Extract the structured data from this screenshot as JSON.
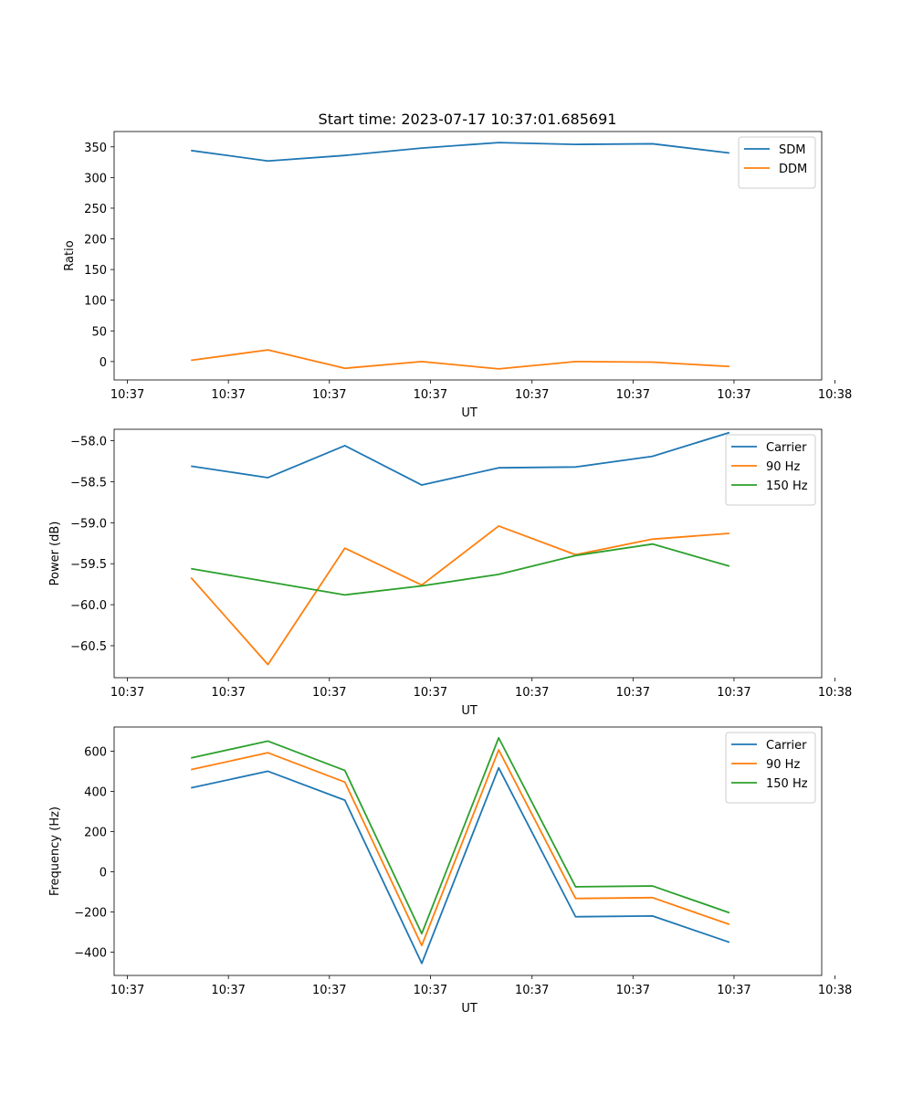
{
  "title": "Start time: 2023-07-17 10:37:01.685691",
  "colors": {
    "blue": "#1f77b4",
    "orange": "#ff7f0e",
    "green": "#2ca02c"
  },
  "chart_data": [
    {
      "type": "line",
      "xlabel": "UT",
      "ylabel": "Ratio",
      "x_tick_labels": [
        "10:37",
        "10:37",
        "10:37",
        "10:37",
        "10:37",
        "10:37",
        "10:37",
        "10:38"
      ],
      "x": [
        1,
        2,
        3,
        4,
        5,
        6,
        7,
        8
      ],
      "xlim": [
        0,
        9.2
      ],
      "ylim": [
        -30,
        375
      ],
      "y_ticks": [
        0,
        50,
        100,
        150,
        200,
        250,
        300,
        350
      ],
      "legend": "top-right",
      "series": [
        {
          "name": "SDM",
          "color": "#1f77b4",
          "values": [
            344,
            327,
            336,
            348,
            357,
            354,
            355,
            340
          ]
        },
        {
          "name": "DDM",
          "color": "#ff7f0e",
          "values": [
            2,
            19,
            -11,
            0,
            -12,
            0,
            -1,
            -8
          ]
        }
      ]
    },
    {
      "type": "line",
      "xlabel": "UT",
      "ylabel": "Power (dB)",
      "x_tick_labels": [
        "10:37",
        "10:37",
        "10:37",
        "10:37",
        "10:37",
        "10:37",
        "10:37",
        "10:38"
      ],
      "x": [
        1,
        2,
        3,
        4,
        5,
        6,
        7,
        8
      ],
      "xlim": [
        0,
        9.2
      ],
      "ylim": [
        -60.89,
        -57.86
      ],
      "y_ticks": [
        -60.5,
        -60.0,
        -59.5,
        -59.0,
        -58.5,
        -58.0
      ],
      "legend": "top-right",
      "series": [
        {
          "name": "Carrier",
          "color": "#1f77b4",
          "values": [
            -58.31,
            -58.45,
            -58.06,
            -58.54,
            -58.33,
            -58.32,
            -58.19,
            -57.9
          ]
        },
        {
          "name": "90 Hz",
          "color": "#ff7f0e",
          "values": [
            -59.67,
            -60.73,
            -59.31,
            -59.76,
            -59.04,
            -59.39,
            -59.2,
            -59.13
          ]
        },
        {
          "name": "150 Hz",
          "color": "#2ca02c",
          "values": [
            -59.56,
            -59.72,
            -59.88,
            -59.77,
            -59.63,
            -59.4,
            -59.26,
            -59.53
          ]
        }
      ]
    },
    {
      "type": "line",
      "xlabel": "UT",
      "ylabel": "Frequency (Hz)",
      "x_tick_labels": [
        "10:37",
        "10:37",
        "10:37",
        "10:37",
        "10:37",
        "10:37",
        "10:37",
        "10:38"
      ],
      "x": [
        1,
        2,
        3,
        4,
        5,
        6,
        7,
        8
      ],
      "xlim": [
        0,
        9.2
      ],
      "ylim": [
        -516,
        720
      ],
      "y_ticks": [
        -400,
        -200,
        0,
        200,
        400,
        600
      ],
      "legend": "top-right",
      "series": [
        {
          "name": "Carrier",
          "color": "#1f77b4",
          "values": [
            417,
            500,
            356,
            -456,
            517,
            -224,
            -220,
            -351
          ]
        },
        {
          "name": "90 Hz",
          "color": "#ff7f0e",
          "values": [
            508,
            592,
            446,
            -367,
            606,
            -133,
            -129,
            -262
          ]
        },
        {
          "name": "150 Hz",
          "color": "#2ca02c",
          "values": [
            566,
            650,
            504,
            -308,
            666,
            -75,
            -71,
            -204
          ]
        }
      ]
    }
  ]
}
